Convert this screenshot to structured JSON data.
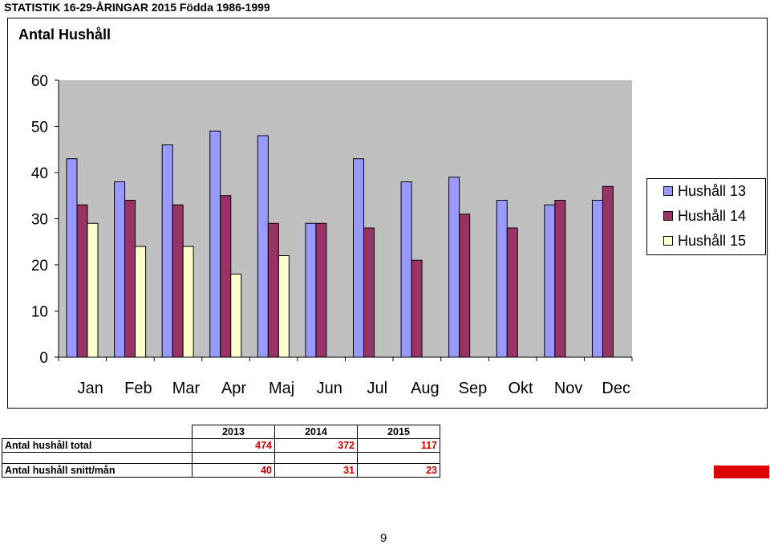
{
  "header": {
    "title": "STATISTIK 16-29-ÅRINGAR 2015 Födda 1986-1999"
  },
  "colors": {
    "plot_background": "#c0c0c0",
    "series_13": "#9999ff",
    "series_14": "#993366",
    "series_15": "#ffffcc",
    "summary_values": "#cc0000",
    "marker": "#e00000"
  },
  "chart_data": {
    "type": "bar",
    "title": "Antal Hushåll",
    "xlabel": "",
    "ylabel": "",
    "ylim": [
      0,
      60
    ],
    "yticks": [
      "0",
      "10",
      "20",
      "30",
      "40",
      "50",
      "60"
    ],
    "grid": false,
    "legend_position": "right",
    "categories": [
      "Jan",
      "Feb",
      "Mar",
      "Apr",
      "Maj",
      "Jun",
      "Jul",
      "Aug",
      "Sep",
      "Okt",
      "Nov",
      "Dec"
    ],
    "series": [
      {
        "name": "Hushåll 13",
        "color": "#9999ff",
        "values": [
          43,
          38,
          46,
          49,
          48,
          29,
          43,
          38,
          39,
          34,
          33,
          34
        ]
      },
      {
        "name": "Hushåll 14",
        "color": "#993366",
        "values": [
          33,
          34,
          33,
          35,
          29,
          29,
          28,
          21,
          31,
          28,
          34,
          37
        ]
      },
      {
        "name": "Hushåll 15",
        "color": "#ffffcc",
        "values": [
          29,
          24,
          24,
          18,
          22,
          null,
          null,
          null,
          null,
          null,
          null,
          null
        ]
      }
    ]
  },
  "summary": {
    "years": [
      "2013",
      "2014",
      "2015"
    ],
    "rows": [
      {
        "label": "Antal hushåll total",
        "values": [
          "474",
          "372",
          "117"
        ]
      },
      {
        "label": "Antal hushåll snitt/mån",
        "values": [
          "40",
          "31",
          "23"
        ]
      }
    ]
  },
  "footer": {
    "page_number": "9"
  }
}
